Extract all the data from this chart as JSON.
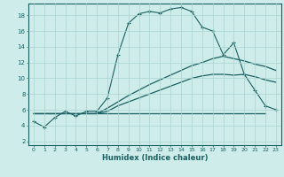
{
  "bg_color": "#ceecea",
  "grid_color": "#aad4d0",
  "line_color": "#1a6060",
  "x_label": "Humidex (Indice chaleur)",
  "xlim": [
    -0.5,
    23.5
  ],
  "ylim": [
    1.5,
    19.5
  ],
  "yticks": [
    2,
    4,
    6,
    8,
    10,
    12,
    14,
    16,
    18
  ],
  "xticks": [
    0,
    1,
    2,
    3,
    4,
    5,
    6,
    7,
    8,
    9,
    10,
    11,
    12,
    13,
    14,
    15,
    16,
    17,
    18,
    19,
    20,
    21,
    22,
    23
  ],
  "curve1_x": [
    0,
    1,
    2,
    3,
    4,
    5,
    6,
    7,
    8,
    9,
    10,
    11,
    12,
    13,
    14,
    15,
    16,
    17,
    18,
    19,
    20,
    21,
    22,
    23
  ],
  "curve1_y": [
    4.5,
    3.8,
    5.0,
    5.8,
    5.2,
    5.8,
    5.8,
    7.5,
    13.0,
    17.0,
    18.2,
    18.5,
    18.3,
    18.8,
    19.0,
    18.5,
    16.5,
    16.0,
    13.0,
    14.5,
    10.5,
    8.5,
    6.5,
    6.0
  ],
  "curve2_x": [
    0,
    22
  ],
  "curve2_y": [
    5.5,
    5.5
  ],
  "curve3_x": [
    0,
    1,
    2,
    3,
    4,
    5,
    6,
    7,
    8,
    9,
    10,
    11,
    12,
    13,
    14,
    15,
    16,
    17,
    18,
    19,
    20,
    21,
    22,
    23
  ],
  "curve3_y": [
    5.5,
    5.5,
    5.5,
    5.5,
    5.5,
    5.5,
    5.5,
    6.2,
    7.0,
    7.8,
    8.5,
    9.2,
    9.8,
    10.4,
    11.0,
    11.6,
    12.0,
    12.5,
    12.8,
    12.5,
    12.2,
    11.8,
    11.5,
    11.0
  ],
  "curve4_x": [
    0,
    1,
    2,
    3,
    4,
    5,
    6,
    7,
    8,
    9,
    10,
    11,
    12,
    13,
    14,
    15,
    16,
    17,
    18,
    19,
    20,
    21,
    22,
    23
  ],
  "curve4_y": [
    5.5,
    5.5,
    5.5,
    5.5,
    5.5,
    5.5,
    5.5,
    5.8,
    6.5,
    7.0,
    7.5,
    8.0,
    8.5,
    9.0,
    9.5,
    10.0,
    10.3,
    10.5,
    10.5,
    10.4,
    10.5,
    10.2,
    9.8,
    9.5
  ]
}
